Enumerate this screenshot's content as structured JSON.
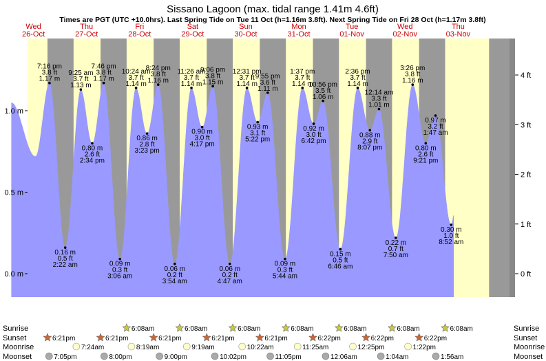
{
  "title": "Sissano Lagoon (max. tidal range 1.41m 4.6ft)",
  "subtitle": "Times are PGT (UTC +10.0hrs). Last Spring Tide on Tue 11 Oct (h=1.16m 3.8ft). Next Spring Tide on Fri 28 Oct (h=1.17m 3.8ft)",
  "colors": {
    "day": "#ffffc6",
    "night": "#999999",
    "water": "#9999ff",
    "day_label": "#cc0000",
    "sunrise_star": "#cccc33",
    "sunset_star": "#cc6633",
    "moonrise": "#ffffcc",
    "moonset": "#aaaaaa"
  },
  "days": [
    {
      "dow": "Wed",
      "date": "26-Oct"
    },
    {
      "dow": "Thu",
      "date": "27-Oct"
    },
    {
      "dow": "Fri",
      "date": "28-Oct"
    },
    {
      "dow": "Sat",
      "date": "29-Oct"
    },
    {
      "dow": "Sun",
      "date": "30-Oct"
    },
    {
      "dow": "Mon",
      "date": "31-Oct"
    },
    {
      "dow": "Tue",
      "date": "01-Nov"
    },
    {
      "dow": "Wed",
      "date": "02-Nov"
    },
    {
      "dow": "Thu",
      "date": "03-Nov"
    }
  ],
  "chart_data": {
    "type": "area",
    "x_unit": "hours since 00:00 Wed 26-Oct (local PGT)",
    "ylim_m": [
      -0.1,
      1.35
    ],
    "ylim_ft": [
      -0.33,
      4.43
    ],
    "y_ticks_m": [
      "0.0 m",
      "0.5 m",
      "1.0 m"
    ],
    "y_ticks_ft": [
      "0 ft",
      "1 ft",
      "2 ft",
      "3 ft",
      "4 ft"
    ],
    "x_range_hours": [
      0,
      218
    ],
    "extremes": [
      {
        "t": "7:16 pm",
        "h_m": 1.17,
        "h_ft": "3.8 ft",
        "m": "1.17 m",
        "hour": 19.27
      },
      {
        "t": "2:22 am",
        "h_m": 0.16,
        "h_ft": "0.5 ft",
        "m": "0.16 m",
        "hour": 26.37
      },
      {
        "t": "9:25 am",
        "h_m": 1.13,
        "h_ft": "3.7 ft",
        "m": "1.13 m",
        "hour": 33.42
      },
      {
        "t": "2:34 pm",
        "h_m": 0.8,
        "h_ft": "2.6 ft",
        "m": "0.80 m",
        "hour": 38.57
      },
      {
        "t": "7:46 pm",
        "h_m": 1.17,
        "h_ft": "3.8 ft",
        "m": "1.17 m",
        "hour": 43.77
      },
      {
        "t": "3:06 am",
        "h_m": 0.09,
        "h_ft": "0.3 ft",
        "m": "0.09 m",
        "hour": 51.1
      },
      {
        "t": "10:24 am",
        "h_m": 1.14,
        "h_ft": "3.7 ft",
        "m": "1.14 m",
        "hour": 58.4
      },
      {
        "t": "3:23 pm",
        "h_m": 0.86,
        "h_ft": "2.8 ft",
        "m": "0.86 m",
        "hour": 63.38
      },
      {
        "t": "8:24 pm",
        "h_m": 1.16,
        "h_ft": "3.8 ft",
        "m": "1.16 m",
        "hour": 68.4
      },
      {
        "t": "3:54 am",
        "h_m": 0.06,
        "h_ft": "0.2 ft",
        "m": "0.06 m",
        "hour": 75.9
      },
      {
        "t": "11:26 am",
        "h_m": 1.14,
        "h_ft": "3.7 ft",
        "m": "1.14 m",
        "hour": 83.43
      },
      {
        "t": "4:17 pm",
        "h_m": 0.9,
        "h_ft": "3.0 ft",
        "m": "0.90 m",
        "hour": 88.28
      },
      {
        "t": "9:06 pm",
        "h_m": 1.15,
        "h_ft": "3.8 ft",
        "m": "1.15 m",
        "hour": 93.1
      },
      {
        "t": "4:47 am",
        "h_m": 0.06,
        "h_ft": "0.2 ft",
        "m": "0.06 m",
        "hour": 100.78
      },
      {
        "t": "12:31 pm",
        "h_m": 1.14,
        "h_ft": "3.7 ft",
        "m": "1.14 m",
        "hour": 108.52
      },
      {
        "t": "5:22 pm",
        "h_m": 0.93,
        "h_ft": "3.1 ft",
        "m": "0.93 m",
        "hour": 113.37
      },
      {
        "t": "9:55 pm",
        "h_m": 1.11,
        "h_ft": "3.6 ft",
        "m": "1.11 m",
        "hour": 117.92
      },
      {
        "t": "5:44 am",
        "h_m": 0.09,
        "h_ft": "0.3 ft",
        "m": "0.09 m",
        "hour": 125.73
      },
      {
        "t": "1:37 pm",
        "h_m": 1.14,
        "h_ft": "3.7 ft",
        "m": "1.14 m",
        "hour": 133.62
      },
      {
        "t": "6:42 pm",
        "h_m": 0.92,
        "h_ft": "3.0 ft",
        "m": "0.92 m",
        "hour": 138.7
      },
      {
        "t": "10:56 pm",
        "h_m": 1.06,
        "h_ft": "3.5 ft",
        "m": "1.06 m",
        "hour": 142.93
      },
      {
        "t": "6:46 am",
        "h_m": 0.15,
        "h_ft": "0.5 ft",
        "m": "0.15 m",
        "hour": 150.77
      },
      {
        "t": "2:36 pm",
        "h_m": 1.14,
        "h_ft": "3.7 ft",
        "m": "1.14 m",
        "hour": 158.6
      },
      {
        "t": "8:07 pm",
        "h_m": 0.88,
        "h_ft": "2.9 ft",
        "m": "0.88 m",
        "hour": 164.12
      },
      {
        "t": "12:14 am",
        "h_m": 1.01,
        "h_ft": "3.3 ft",
        "m": "1.01 m",
        "hour": 168.23
      },
      {
        "t": "7:50 am",
        "h_m": 0.22,
        "h_ft": "0.7 ft",
        "m": "0.22 m",
        "hour": 175.83
      },
      {
        "t": "3:26 pm",
        "h_m": 1.16,
        "h_ft": "3.8 ft",
        "m": "1.16 m",
        "hour": 183.43
      },
      {
        "t": "9:21 pm",
        "h_m": 0.8,
        "h_ft": "2.6 ft",
        "m": "0.80 m",
        "hour": 189.35
      },
      {
        "t": "1:47 am",
        "h_m": 0.97,
        "h_ft": "3.2 ft",
        "m": "0.97 m",
        "hour": 193.78
      },
      {
        "t": "8:52 am",
        "h_m": 0.3,
        "h_ft": "1.0 ft",
        "m": "0.30 m",
        "hour": 200.87
      }
    ]
  },
  "astro_labels": {
    "sunrise": "Sunrise",
    "sunset": "Sunset",
    "moonrise": "Moonrise",
    "moonset": "Moonset"
  },
  "sunrise": [
    {
      "hour": 6.15,
      "t": "6:09am"
    },
    {
      "hour": 30.15,
      "t": "6:09am"
    },
    {
      "hour": 54.13,
      "t": "6:08am"
    },
    {
      "hour": 78.13,
      "t": "6:08am"
    },
    {
      "hour": 102.13,
      "t": "6:08am"
    },
    {
      "hour": 126.13,
      "t": "6:08am"
    },
    {
      "hour": 150.13,
      "t": "6:08am"
    },
    {
      "hour": 174.13,
      "t": "6:08am"
    },
    {
      "hour": 198.13,
      "t": "6:08am"
    }
  ],
  "sunset": [
    {
      "hour": 18.35,
      "t": "6:21pm"
    },
    {
      "hour": 42.35,
      "t": "6:21pm"
    },
    {
      "hour": 66.35,
      "t": "6:21pm"
    },
    {
      "hour": 90.35,
      "t": "6:21pm"
    },
    {
      "hour": 114.35,
      "t": "6:21pm"
    },
    {
      "hour": 138.37,
      "t": "6:22pm"
    },
    {
      "hour": 162.37,
      "t": "6:22pm"
    },
    {
      "hour": 186.37,
      "t": "6:22pm"
    }
  ],
  "moonrise": [
    {
      "hour": 31.4,
      "t": "7:24am"
    },
    {
      "hour": 56.32,
      "t": "8:19am"
    },
    {
      "hour": 81.32,
      "t": "9:19am"
    },
    {
      "hour": 106.37,
      "t": "10:22am"
    },
    {
      "hour": 131.42,
      "t": "11:25am"
    },
    {
      "hour": 156.42,
      "t": "12:25pm"
    },
    {
      "hour": 181.37,
      "t": "1:22pm"
    }
  ],
  "moonset": [
    {
      "hour": 19.08,
      "t": "7:05pm"
    },
    {
      "hour": 44.0,
      "t": "8:00pm"
    },
    {
      "hour": 69.0,
      "t": "9:00pm"
    },
    {
      "hour": 94.03,
      "t": "10:02pm"
    },
    {
      "hour": 119.08,
      "t": "11:05pm"
    },
    {
      "hour": 144.1,
      "t": "12:06am"
    },
    {
      "hour": 169.07,
      "t": "1:04am"
    },
    {
      "hour": 193.93,
      "t": "1:56am"
    }
  ]
}
